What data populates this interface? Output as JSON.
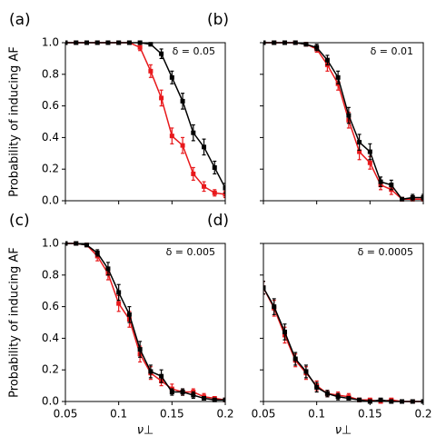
{
  "chart_data": [
    {
      "type": "line",
      "panel_label": "(a)",
      "annotation": "δ = 0.05",
      "ylabel": "Probability of inducing AF",
      "xlabel": null,
      "x": [
        0.05,
        0.06,
        0.07,
        0.08,
        0.09,
        0.1,
        0.11,
        0.12,
        0.13,
        0.14,
        0.15,
        0.16,
        0.17,
        0.18,
        0.19,
        0.2
      ],
      "xlim": [
        0.05,
        0.2
      ],
      "ylim": [
        0,
        1.0
      ],
      "xtick_labels": false,
      "ytick_labels": true,
      "xticks": [
        0.05,
        0.1,
        0.15,
        0.2
      ],
      "yticks": [
        {
          "value": 0,
          "label": "0.0"
        },
        0.2,
        0.4,
        0.6,
        0.8,
        {
          "value": 1,
          "label": "1.0"
        }
      ],
      "series": [
        {
          "name": "red",
          "color": "#e8191c",
          "values": [
            1,
            1,
            1,
            1,
            1,
            1,
            1,
            0.97,
            0.82,
            0.65,
            0.41,
            0.35,
            0.17,
            0.09,
            0.05,
            0.04
          ],
          "errors": [
            0,
            0,
            0,
            0,
            0,
            0,
            0,
            0.02,
            0.04,
            0.05,
            0.05,
            0.05,
            0.04,
            0.03,
            0.02,
            0.02
          ]
        },
        {
          "name": "black",
          "color": "#000000",
          "values": [
            1,
            1,
            1,
            1,
            1,
            1,
            1,
            1,
            0.99,
            0.93,
            0.78,
            0.63,
            0.43,
            0.34,
            0.21,
            0.08
          ],
          "errors": [
            0,
            0,
            0,
            0,
            0,
            0,
            0,
            0,
            0.01,
            0.03,
            0.04,
            0.05,
            0.05,
            0.05,
            0.04,
            0.03
          ]
        }
      ]
    },
    {
      "type": "line",
      "panel_label": "(b)",
      "annotation": "δ = 0.01",
      "ylabel": null,
      "xlabel": null,
      "x": [
        0.05,
        0.06,
        0.07,
        0.08,
        0.09,
        0.1,
        0.11,
        0.12,
        0.13,
        0.14,
        0.15,
        0.16,
        0.17,
        0.18,
        0.19,
        0.2
      ],
      "xlim": [
        0.05,
        0.2
      ],
      "ylim": [
        0,
        1.0
      ],
      "xtick_labels": false,
      "ytick_labels": false,
      "xticks": [
        0.05,
        0.1,
        0.15,
        0.2
      ],
      "yticks": [
        0,
        0.2,
        0.4,
        0.6,
        0.8,
        1
      ],
      "series": [
        {
          "name": "red",
          "color": "#e8191c",
          "values": [
            1,
            1,
            1,
            1,
            0.99,
            0.96,
            0.86,
            0.74,
            0.51,
            0.31,
            0.24,
            0.1,
            0.07,
            0.01,
            0.01,
            0.01
          ],
          "errors": [
            0,
            0,
            0,
            0,
            0.01,
            0.02,
            0.04,
            0.04,
            0.05,
            0.05,
            0.04,
            0.03,
            0.03,
            0.01,
            0.01,
            0.01
          ]
        },
        {
          "name": "black",
          "color": "#000000",
          "values": [
            1,
            1,
            1,
            1,
            0.99,
            0.97,
            0.89,
            0.78,
            0.54,
            0.37,
            0.31,
            0.12,
            0.1,
            0.01,
            0.02,
            0.02
          ],
          "errors": [
            0,
            0,
            0,
            0,
            0.01,
            0.02,
            0.03,
            0.04,
            0.05,
            0.05,
            0.05,
            0.03,
            0.03,
            0.01,
            0.02,
            0.02
          ]
        }
      ]
    },
    {
      "type": "line",
      "panel_label": "(c)",
      "annotation": "δ = 0.005",
      "ylabel": "Probability of inducing AF",
      "xlabel": "ν⊥",
      "x": [
        0.05,
        0.06,
        0.07,
        0.08,
        0.09,
        0.1,
        0.11,
        0.12,
        0.13,
        0.14,
        0.15,
        0.16,
        0.17,
        0.18,
        0.19,
        0.2
      ],
      "xlim": [
        0.05,
        0.2
      ],
      "ylim": [
        0,
        1.0
      ],
      "xtick_labels": true,
      "ytick_labels": true,
      "xticks": [
        0.05,
        0.1,
        0.15,
        0.2
      ],
      "yticks": [
        {
          "value": 0,
          "label": "0.0"
        },
        0.2,
        0.4,
        0.6,
        0.8,
        {
          "value": 1,
          "label": "1.0"
        }
      ],
      "series": [
        {
          "name": "red",
          "color": "#e8191c",
          "values": [
            1,
            1,
            0.99,
            0.92,
            0.81,
            0.62,
            0.52,
            0.3,
            0.18,
            0.13,
            0.08,
            0.06,
            0.06,
            0.03,
            0.02,
            0.01
          ],
          "errors": [
            0,
            0,
            0.01,
            0.03,
            0.04,
            0.05,
            0.05,
            0.05,
            0.04,
            0.03,
            0.03,
            0.02,
            0.02,
            0.02,
            0.01,
            0.01
          ]
        },
        {
          "name": "black",
          "color": "#000000",
          "values": [
            1,
            1,
            0.99,
            0.94,
            0.84,
            0.69,
            0.55,
            0.33,
            0.19,
            0.16,
            0.06,
            0.06,
            0.04,
            0.02,
            0.01,
            0.01
          ],
          "errors": [
            0,
            0,
            0.01,
            0.02,
            0.04,
            0.05,
            0.05,
            0.05,
            0.04,
            0.04,
            0.02,
            0.02,
            0.02,
            0.01,
            0.01,
            0.01
          ]
        }
      ]
    },
    {
      "type": "line",
      "panel_label": "(d)",
      "annotation": "δ = 0.0005",
      "ylabel": null,
      "xlabel": "ν⊥",
      "x": [
        0.05,
        0.06,
        0.07,
        0.08,
        0.09,
        0.1,
        0.11,
        0.12,
        0.13,
        0.14,
        0.15,
        0.16,
        0.17,
        0.18,
        0.19,
        0.2
      ],
      "xlim": [
        0.05,
        0.2
      ],
      "ylim": [
        0,
        1.0
      ],
      "xtick_labels": true,
      "ytick_labels": false,
      "xticks": [
        0.05,
        0.1,
        0.15,
        0.2
      ],
      "yticks": [
        0,
        0.2,
        0.4,
        0.6,
        0.8,
        1
      ],
      "series": [
        {
          "name": "red",
          "color": "#e8191c",
          "values": [
            0.72,
            0.59,
            0.42,
            0.26,
            0.18,
            0.1,
            0.05,
            0.04,
            0.03,
            0.01,
            0.01,
            0,
            0.01,
            0,
            0,
            0
          ],
          "errors": [
            0.04,
            0.05,
            0.05,
            0.04,
            0.04,
            0.03,
            0.02,
            0.02,
            0.02,
            0.01,
            0.01,
            0,
            0.01,
            0,
            0,
            0
          ]
        },
        {
          "name": "black",
          "color": "#000000",
          "values": [
            0.72,
            0.6,
            0.44,
            0.27,
            0.19,
            0.09,
            0.05,
            0.03,
            0.02,
            0.01,
            0,
            0.01,
            0,
            0,
            0,
            0
          ],
          "errors": [
            0.04,
            0.05,
            0.05,
            0.04,
            0.04,
            0.03,
            0.02,
            0.02,
            0.01,
            0.01,
            0,
            0.01,
            0,
            0,
            0,
            0
          ]
        }
      ]
    }
  ]
}
